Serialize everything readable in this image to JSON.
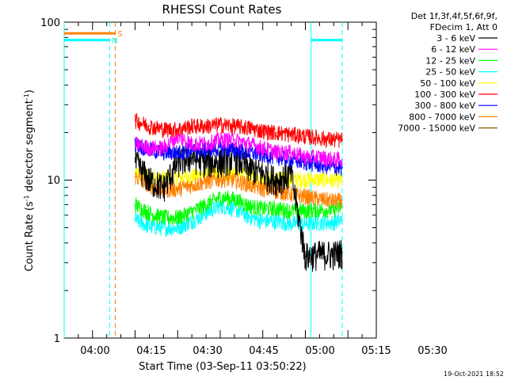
{
  "chart_data": {
    "type": "line",
    "title": "RHESSI Count Rates",
    "xlabel": "Start Time (03-Sep-11 03:50:22)",
    "ylabel_main": "Count Rate (s",
    "ylabel_sup1": "-1",
    "ylabel_mid": " detector segment",
    "ylabel_sup2": "-1",
    "ylabel_end": ")",
    "yscale": "log",
    "ylim": [
      1,
      100
    ],
    "xlim_minutes": [
      -10,
      100
    ],
    "x_tick_labels": [
      "04:00",
      "04:15",
      "04:30",
      "04:45",
      "05:00",
      "05:15",
      "05:30"
    ],
    "x_tick_minutes": [
      0,
      15,
      30,
      45,
      60,
      75,
      90
    ],
    "y_tick_labels": [
      "1",
      "10",
      "100"
    ],
    "y_tick_values": [
      1,
      10,
      100
    ],
    "legend_header": [
      "Det 1f,3f,4f,5f,6f,9f,",
      "FDecim 1, Att 0"
    ],
    "legend_position": "right",
    "series": [
      {
        "name": "3 - 6 keV",
        "color": "#000000",
        "x": [
          15,
          20,
          25,
          30,
          35,
          40,
          45,
          50,
          55,
          60,
          65,
          70,
          75,
          80,
          85,
          88
        ],
        "values": [
          13,
          10,
          9,
          13,
          14,
          13,
          13,
          14,
          12,
          11,
          10,
          11,
          3.3,
          3.4,
          3.4,
          3.5
        ]
      },
      {
        "name": "6 - 12 keV",
        "color": "#ff00ff",
        "x": [
          15,
          20,
          25,
          30,
          35,
          40,
          45,
          50,
          55,
          60,
          65,
          70,
          75,
          80,
          85,
          88
        ],
        "values": [
          17,
          16,
          16,
          19,
          17,
          17,
          18,
          18,
          17,
          16,
          15,
          15,
          14,
          14,
          13.5,
          13.5
        ]
      },
      {
        "name": "12 - 25 keV",
        "color": "#00ff00",
        "x": [
          15,
          20,
          25,
          30,
          35,
          40,
          45,
          50,
          55,
          60,
          65,
          70,
          75,
          80,
          85,
          88
        ],
        "values": [
          7,
          6.2,
          5.8,
          5.8,
          6.3,
          7,
          7.8,
          7.6,
          6.9,
          6.6,
          6.6,
          6.4,
          6.4,
          6.5,
          6.5,
          6.7
        ]
      },
      {
        "name": "25 - 50 keV",
        "color": "#00ffff",
        "x": [
          15,
          20,
          25,
          30,
          35,
          40,
          45,
          50,
          55,
          60,
          65,
          70,
          75,
          80,
          85,
          88
        ],
        "values": [
          5.6,
          5.1,
          5,
          5,
          5.5,
          6.2,
          6.9,
          6.6,
          5.9,
          5.5,
          5.5,
          5.3,
          5.3,
          5.4,
          5.4,
          5.6
        ]
      },
      {
        "name": "50 - 100 keV",
        "color": "#ffff00",
        "x": [
          15,
          20,
          25,
          30,
          35,
          40,
          45,
          50,
          55,
          60,
          65,
          70,
          75,
          80,
          85,
          88
        ],
        "values": [
          11,
          10.5,
          10.3,
          10.3,
          10.6,
          10.9,
          11.2,
          11,
          10.6,
          10.3,
          10.3,
          10.1,
          10.1,
          10.1,
          10,
          10
        ]
      },
      {
        "name": "100 - 300 keV",
        "color": "#ff0000",
        "x": [
          15,
          20,
          25,
          30,
          35,
          40,
          45,
          50,
          55,
          60,
          65,
          70,
          75,
          80,
          85,
          88
        ],
        "values": [
          24,
          22,
          21,
          21,
          22,
          22,
          22.5,
          22,
          21.5,
          20.5,
          20,
          19.5,
          19,
          18.5,
          18,
          18
        ]
      },
      {
        "name": "300 - 800 keV",
        "color": "#0000ff",
        "x": [
          15,
          20,
          25,
          30,
          35,
          40,
          45,
          50,
          55,
          60,
          65,
          70,
          75,
          80,
          85,
          88
        ],
        "values": [
          17,
          15.5,
          15,
          15,
          15.5,
          15.5,
          16,
          15.5,
          15,
          14.5,
          14,
          13.5,
          13,
          12.5,
          12,
          12
        ]
      },
      {
        "name": "800 - 7000 keV",
        "color": "#ff8000",
        "x": [
          15,
          20,
          25,
          30,
          35,
          40,
          45,
          50,
          55,
          60,
          65,
          70,
          75,
          80,
          85,
          88
        ],
        "values": [
          10.5,
          9.3,
          8.7,
          8.8,
          9.3,
          9.8,
          10.2,
          10,
          9.4,
          8.8,
          8.5,
          8.2,
          7.9,
          7.6,
          7.4,
          7.4
        ]
      },
      {
        "name": "7000 - 15000 keV",
        "color": "#806000",
        "x": [],
        "values": []
      }
    ],
    "annotations": [
      {
        "text": "S",
        "color": "#ff8000"
      },
      {
        "text": "N",
        "color": "#00ffff"
      }
    ],
    "attenuator_bars": [
      {
        "label": "S",
        "color": "#ff8000",
        "x_range": [
          -10,
          8
        ],
        "y": 85
      },
      {
        "label": "N",
        "color": "#00ffff",
        "x_range": [
          -10,
          6
        ],
        "y": 77
      },
      {
        "label": "N",
        "color": "#00ffff",
        "x_range": [
          77,
          88
        ],
        "y": 77
      }
    ],
    "vertical_markers": [
      {
        "x": -10,
        "color": "#00ffff",
        "style": "solid"
      },
      {
        "x": 6,
        "color": "#00ffff",
        "style": "dashed"
      },
      {
        "x": 8,
        "color": "#ff8000",
        "style": "dashed"
      },
      {
        "x": 77,
        "color": "#00ffff",
        "style": "solid"
      },
      {
        "x": 88,
        "color": "#00ffff",
        "style": "dashed"
      }
    ],
    "footer": "19-Oct-2021 18:52"
  }
}
